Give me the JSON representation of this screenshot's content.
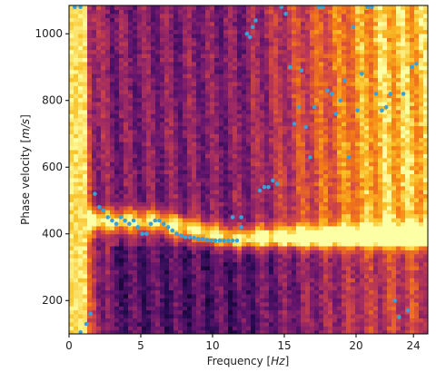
{
  "chart_data": {
    "type": "heatmap",
    "title": "",
    "xlabel": "Frequency [Hz]",
    "xlabel_parts": [
      "Frequency [",
      "Hz",
      "]"
    ],
    "ylabel": "Phase velocity [m/s]",
    "ylabel_parts": [
      "Phase velocity [",
      "m/s",
      "]"
    ],
    "xlim": [
      0,
      25
    ],
    "ylim": [
      100,
      1085
    ],
    "xticks": [
      0,
      5,
      10,
      15,
      20
    ],
    "xticks_extra": [
      24
    ],
    "xtick_labels": [
      "0",
      "5",
      "10",
      "15",
      "20",
      "24"
    ],
    "yticks": [
      200,
      400,
      600,
      800,
      1000
    ],
    "ytick_labels": [
      "200",
      "400",
      "600",
      "800",
      "1000"
    ],
    "colormap": "inferno",
    "grid": false,
    "legend": "none",
    "point_color": "#3aa0d8",
    "picks": [
      {
        "x": 0.4,
        "y": 1080
      },
      {
        "x": 0.8,
        "y": 1080
      },
      {
        "x": 0.8,
        "y": 105
      },
      {
        "x": 1.2,
        "y": 130
      },
      {
        "x": 1.5,
        "y": 160
      },
      {
        "x": 1.8,
        "y": 520
      },
      {
        "x": 2.1,
        "y": 480
      },
      {
        "x": 2.4,
        "y": 470
      },
      {
        "x": 2.7,
        "y": 450
      },
      {
        "x": 3.0,
        "y": 440
      },
      {
        "x": 3.3,
        "y": 430
      },
      {
        "x": 3.6,
        "y": 450
      },
      {
        "x": 3.9,
        "y": 440
      },
      {
        "x": 4.2,
        "y": 430
      },
      {
        "x": 4.5,
        "y": 440
      },
      {
        "x": 4.8,
        "y": 420
      },
      {
        "x": 5.1,
        "y": 400
      },
      {
        "x": 5.4,
        "y": 400
      },
      {
        "x": 5.7,
        "y": 430
      },
      {
        "x": 6.0,
        "y": 440
      },
      {
        "x": 6.3,
        "y": 440
      },
      {
        "x": 6.6,
        "y": 430
      },
      {
        "x": 6.9,
        "y": 420
      },
      {
        "x": 7.2,
        "y": 410
      },
      {
        "x": 7.5,
        "y": 400
      },
      {
        "x": 7.8,
        "y": 395
      },
      {
        "x": 8.1,
        "y": 390
      },
      {
        "x": 8.4,
        "y": 390
      },
      {
        "x": 8.7,
        "y": 388
      },
      {
        "x": 9.0,
        "y": 385
      },
      {
        "x": 9.3,
        "y": 385
      },
      {
        "x": 9.6,
        "y": 382
      },
      {
        "x": 9.9,
        "y": 380
      },
      {
        "x": 10.2,
        "y": 380
      },
      {
        "x": 10.5,
        "y": 380
      },
      {
        "x": 10.8,
        "y": 380
      },
      {
        "x": 11.1,
        "y": 380
      },
      {
        "x": 11.4,
        "y": 380
      },
      {
        "x": 11.7,
        "y": 380
      },
      {
        "x": 11.4,
        "y": 450
      },
      {
        "x": 12.0,
        "y": 450
      },
      {
        "x": 12.0,
        "y": 420
      },
      {
        "x": 12.4,
        "y": 1000
      },
      {
        "x": 12.6,
        "y": 990
      },
      {
        "x": 12.8,
        "y": 1020
      },
      {
        "x": 13.0,
        "y": 1040
      },
      {
        "x": 13.3,
        "y": 530
      },
      {
        "x": 13.6,
        "y": 540
      },
      {
        "x": 13.9,
        "y": 540
      },
      {
        "x": 14.2,
        "y": 560
      },
      {
        "x": 14.5,
        "y": 550
      },
      {
        "x": 14.8,
        "y": 1080
      },
      {
        "x": 15.1,
        "y": 1060
      },
      {
        "x": 15.4,
        "y": 900
      },
      {
        "x": 15.7,
        "y": 730
      },
      {
        "x": 16.0,
        "y": 780
      },
      {
        "x": 16.2,
        "y": 890
      },
      {
        "x": 16.5,
        "y": 720
      },
      {
        "x": 16.8,
        "y": 630
      },
      {
        "x": 17.1,
        "y": 780
      },
      {
        "x": 17.4,
        "y": 1080
      },
      {
        "x": 17.7,
        "y": 1080
      },
      {
        "x": 18.0,
        "y": 830
      },
      {
        "x": 18.3,
        "y": 820
      },
      {
        "x": 18.6,
        "y": 760
      },
      {
        "x": 18.9,
        "y": 800
      },
      {
        "x": 19.2,
        "y": 860
      },
      {
        "x": 19.5,
        "y": 630
      },
      {
        "x": 19.8,
        "y": 1020
      },
      {
        "x": 20.1,
        "y": 770
      },
      {
        "x": 20.4,
        "y": 880
      },
      {
        "x": 20.8,
        "y": 1080
      },
      {
        "x": 21.1,
        "y": 1080
      },
      {
        "x": 21.4,
        "y": 820
      },
      {
        "x": 21.8,
        "y": 770
      },
      {
        "x": 22.1,
        "y": 780
      },
      {
        "x": 22.4,
        "y": 820
      },
      {
        "x": 22.7,
        "y": 200
      },
      {
        "x": 23.0,
        "y": 150
      },
      {
        "x": 23.3,
        "y": 820
      },
      {
        "x": 23.6,
        "y": 170
      },
      {
        "x": 23.9,
        "y": 900
      },
      {
        "x": 24.2,
        "y": 910
      }
    ]
  }
}
